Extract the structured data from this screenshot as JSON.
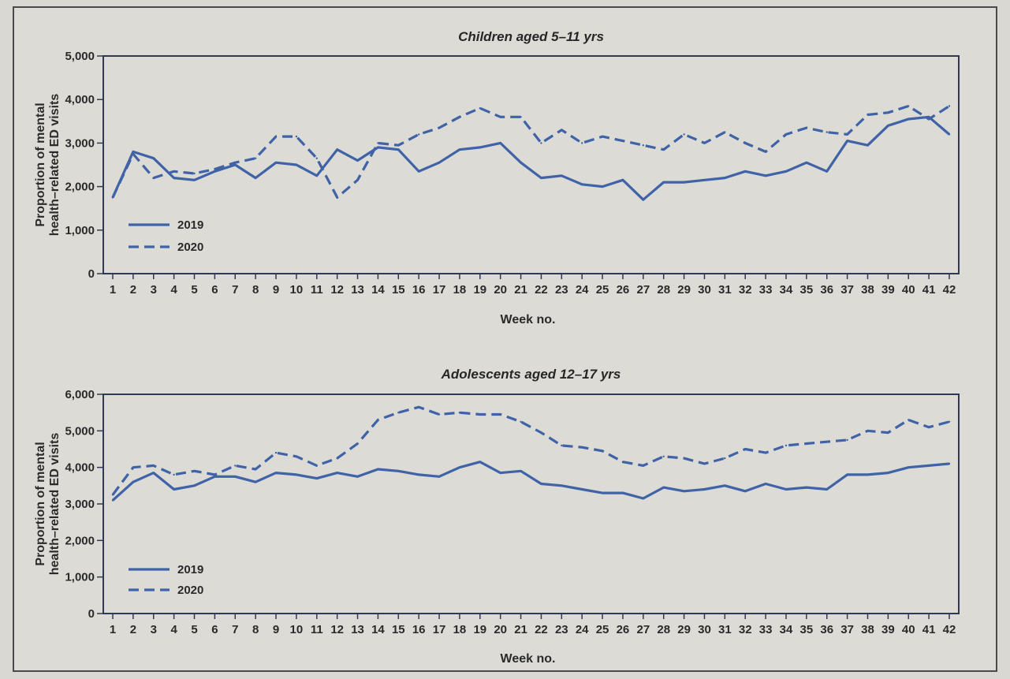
{
  "chart_data": [
    {
      "type": "line",
      "title": "Children aged 5–11 yrs",
      "xlabel": "Week no.",
      "ylabel": [
        "Proportion of mental",
        "health–related ED visits"
      ],
      "ylim": [
        0,
        5000
      ],
      "yticks": [
        0,
        1000,
        2000,
        3000,
        4000,
        5000
      ],
      "ytick_labels": [
        "0",
        "1,000",
        "2,000",
        "3,000",
        "4,000",
        "5,000"
      ],
      "x": [
        1,
        2,
        3,
        4,
        5,
        6,
        7,
        8,
        9,
        10,
        11,
        12,
        13,
        14,
        15,
        16,
        17,
        18,
        19,
        20,
        21,
        22,
        23,
        24,
        25,
        26,
        27,
        28,
        29,
        30,
        31,
        32,
        33,
        34,
        35,
        36,
        37,
        38,
        39,
        40,
        41,
        42
      ],
      "legend_position": "bottom-left",
      "series": [
        {
          "name": "2019",
          "style": "solid",
          "values": [
            1750,
            2800,
            2650,
            2200,
            2150,
            2350,
            2500,
            2200,
            2550,
            2500,
            2250,
            2850,
            2600,
            2900,
            2850,
            2350,
            2550,
            2850,
            2900,
            3000,
            2550,
            2200,
            2250,
            2050,
            2000,
            2150,
            1700,
            2100,
            2100,
            2150,
            2200,
            2350,
            2250,
            2350,
            2550,
            2350,
            3050,
            2950,
            3400,
            3550,
            3600,
            3200
          ]
        },
        {
          "name": "2020",
          "style": "dashed",
          "values": [
            1750,
            2750,
            2200,
            2350,
            2300,
            2400,
            2550,
            2650,
            3150,
            3150,
            2650,
            1750,
            2150,
            3000,
            2950,
            3200,
            3350,
            3600,
            3800,
            3600,
            3600,
            3000,
            3300,
            3000,
            3150,
            3050,
            2950,
            2850,
            3200,
            3000,
            3250,
            3000,
            2800,
            3200,
            3350,
            3250,
            3200,
            3650,
            3700,
            3850,
            3550,
            3850
          ]
        }
      ]
    },
    {
      "type": "line",
      "title": "Adolescents aged 12–17 yrs",
      "xlabel": "Week no.",
      "ylabel": [
        "Proportion of mental",
        "health–related ED visits"
      ],
      "ylim": [
        0,
        6000
      ],
      "yticks": [
        0,
        1000,
        2000,
        3000,
        4000,
        5000,
        6000
      ],
      "ytick_labels": [
        "0",
        "1,000",
        "2,000",
        "3,000",
        "4,000",
        "5,000",
        "6,000"
      ],
      "x": [
        1,
        2,
        3,
        4,
        5,
        6,
        7,
        8,
        9,
        10,
        11,
        12,
        13,
        14,
        15,
        16,
        17,
        18,
        19,
        20,
        21,
        22,
        23,
        24,
        25,
        26,
        27,
        28,
        29,
        30,
        31,
        32,
        33,
        34,
        35,
        36,
        37,
        38,
        39,
        40,
        41,
        42
      ],
      "legend_position": "bottom-left",
      "series": [
        {
          "name": "2019",
          "style": "solid",
          "values": [
            3100,
            3600,
            3850,
            3400,
            3500,
            3750,
            3750,
            3600,
            3850,
            3800,
            3700,
            3850,
            3750,
            3950,
            3900,
            3800,
            3750,
            4000,
            4150,
            3850,
            3900,
            3550,
            3500,
            3400,
            3300,
            3300,
            3150,
            3450,
            3350,
            3400,
            3500,
            3350,
            3550,
            3400,
            3450,
            3400,
            3800,
            3800,
            3850,
            4000,
            4050,
            4100
          ]
        },
        {
          "name": "2020",
          "style": "dashed",
          "values": [
            3250,
            4000,
            4050,
            3800,
            3900,
            3800,
            4050,
            3950,
            4400,
            4300,
            4050,
            4250,
            4650,
            5300,
            5500,
            5650,
            5450,
            5500,
            5450,
            5450,
            5250,
            4950,
            4600,
            4550,
            4450,
            4150,
            4050,
            4300,
            4250,
            4100,
            4250,
            4500,
            4400,
            4600,
            4650,
            4700,
            4750,
            5000,
            4950,
            5300,
            5100,
            5250
          ]
        }
      ]
    }
  ]
}
